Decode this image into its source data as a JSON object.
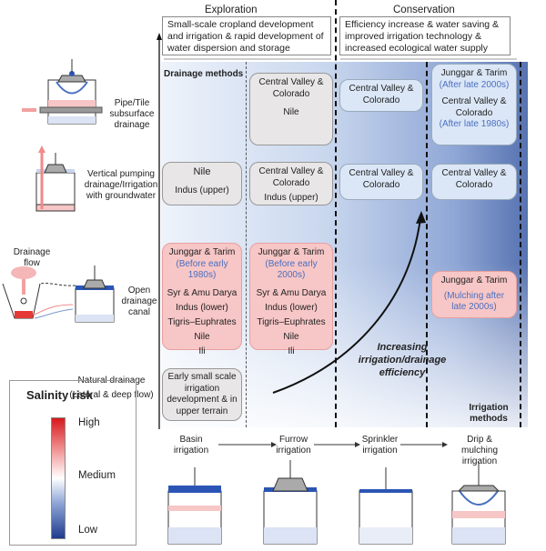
{
  "phases": {
    "exploration": "Exploration",
    "conservation": "Conservation",
    "exploration_desc": "Small-scale cropland development and irrigation & rapid development of water dispersion and storage",
    "conservation_desc": "Efficiency increase & water saving & improved irrigation technology & increased ecological water supply"
  },
  "axes": {
    "drainage": "Drainage methods",
    "irrigation": "Irrigation methods",
    "trend": "Increasing irrigation/drainage efficiency"
  },
  "drainage_methods": {
    "pipe": "Pipe/Tile subsurface drainage",
    "vertical": "Vertical pumping drainage/Irrigation with groundwater",
    "canal": "Open drainage canal",
    "canal_flow": "Drainage flow",
    "natural": "Natural drainage (Lateral & deep flow)"
  },
  "irrigation_methods": [
    "Basin irrigation",
    "Furrow irrigation",
    "Sprinkler irrigation",
    "Drip & mulching irrigation"
  ],
  "cells": {
    "c2_pipe": [
      "Central Valley & Colorado",
      "Nile"
    ],
    "c3_pipe": [
      "Central Valley & Colorado"
    ],
    "c4_pipe": {
      "a": "Junggar & Tarim",
      "a_note": "(After late 2000s)",
      "b": "Central Valley & Colorado",
      "b_note": "(After late 1980s)"
    },
    "c1_vert": [
      "Nile",
      "Indus (upper)"
    ],
    "c2_vert": [
      "Central Valley & Colorado",
      "Indus (upper)"
    ],
    "c3_vert": [
      "Central Valley & Colorado"
    ],
    "c4_vert": [
      "Central Valley & Colorado"
    ],
    "c1_canal": {
      "head": "Junggar & Tarim",
      "note": "(Before early 1980s)",
      "items": [
        "Syr & Amu Darya",
        "Indus (lower)",
        "Tigris–Euphrates",
        "Nile",
        "Ili"
      ]
    },
    "c2_canal": {
      "head": "Junggar & Tarim",
      "note": "(Before early 2000s)",
      "items": [
        "Syr & Amu Darya",
        "Indus (lower)",
        "Tigris–Euphrates",
        "Nile",
        "Ili"
      ]
    },
    "c4_canal": {
      "head": "Junggar & Tarim",
      "note": "(Mulching after late 2000s)"
    },
    "c1_natural": "Early small scale irrigation development & in upper terrain"
  },
  "legend": {
    "title": "Salinity risk",
    "high": "High",
    "medium": "Medium",
    "low": "Low",
    "colors": {
      "high": "#d7191c",
      "medium": "#ffffff",
      "low": "#1f3b8f"
    }
  }
}
